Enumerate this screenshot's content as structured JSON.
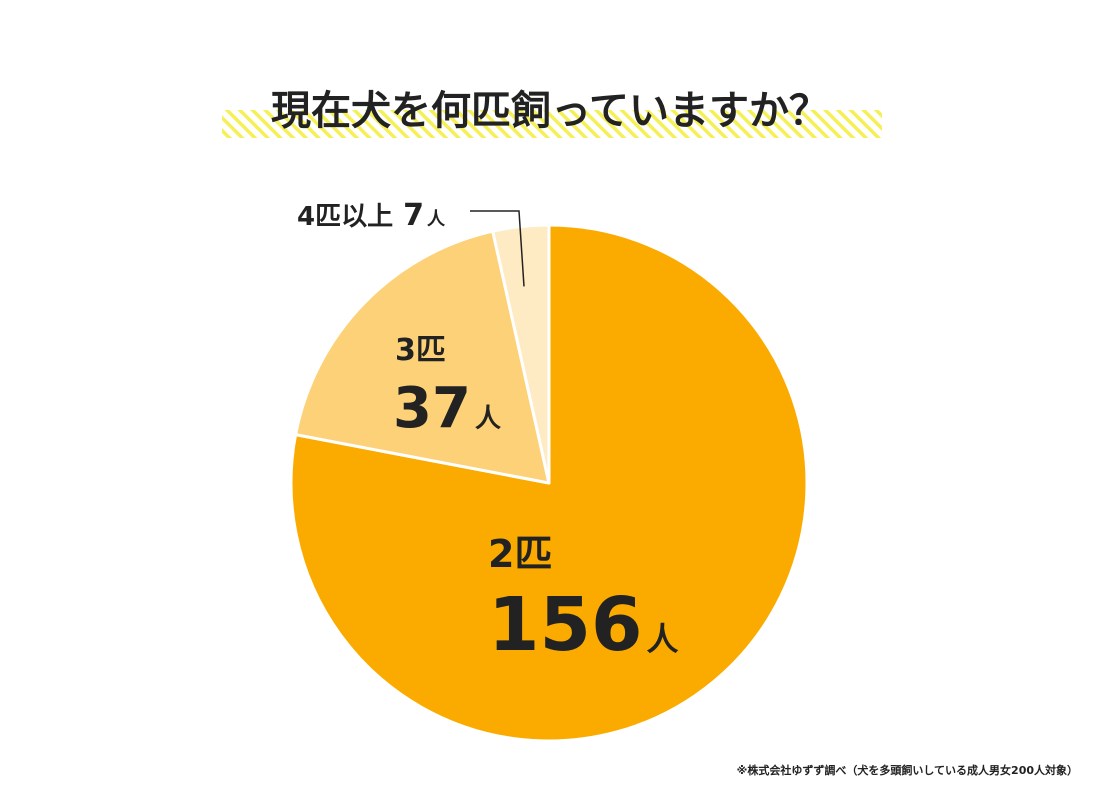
{
  "chart_data": {
    "type": "pie",
    "title": "現在犬を何匹飼っていますか？",
    "unit": "人",
    "slices": [
      {
        "label": "2匹",
        "value": 156,
        "color": "#fbab00"
      },
      {
        "label": "3匹",
        "value": 37,
        "color": "#fdd177"
      },
      {
        "label": "4匹以上",
        "value": 7,
        "color": "#feebc4"
      }
    ],
    "start_angle": "12 o'clock",
    "direction": "clockwise",
    "colors": {
      "title_underline": "#f5f056",
      "slice_border": "#ffffff",
      "text": "#222222"
    },
    "source_note": "※株式会社ゆずず調べ（犬を多頭飼いしている成人男女200人対象）"
  }
}
